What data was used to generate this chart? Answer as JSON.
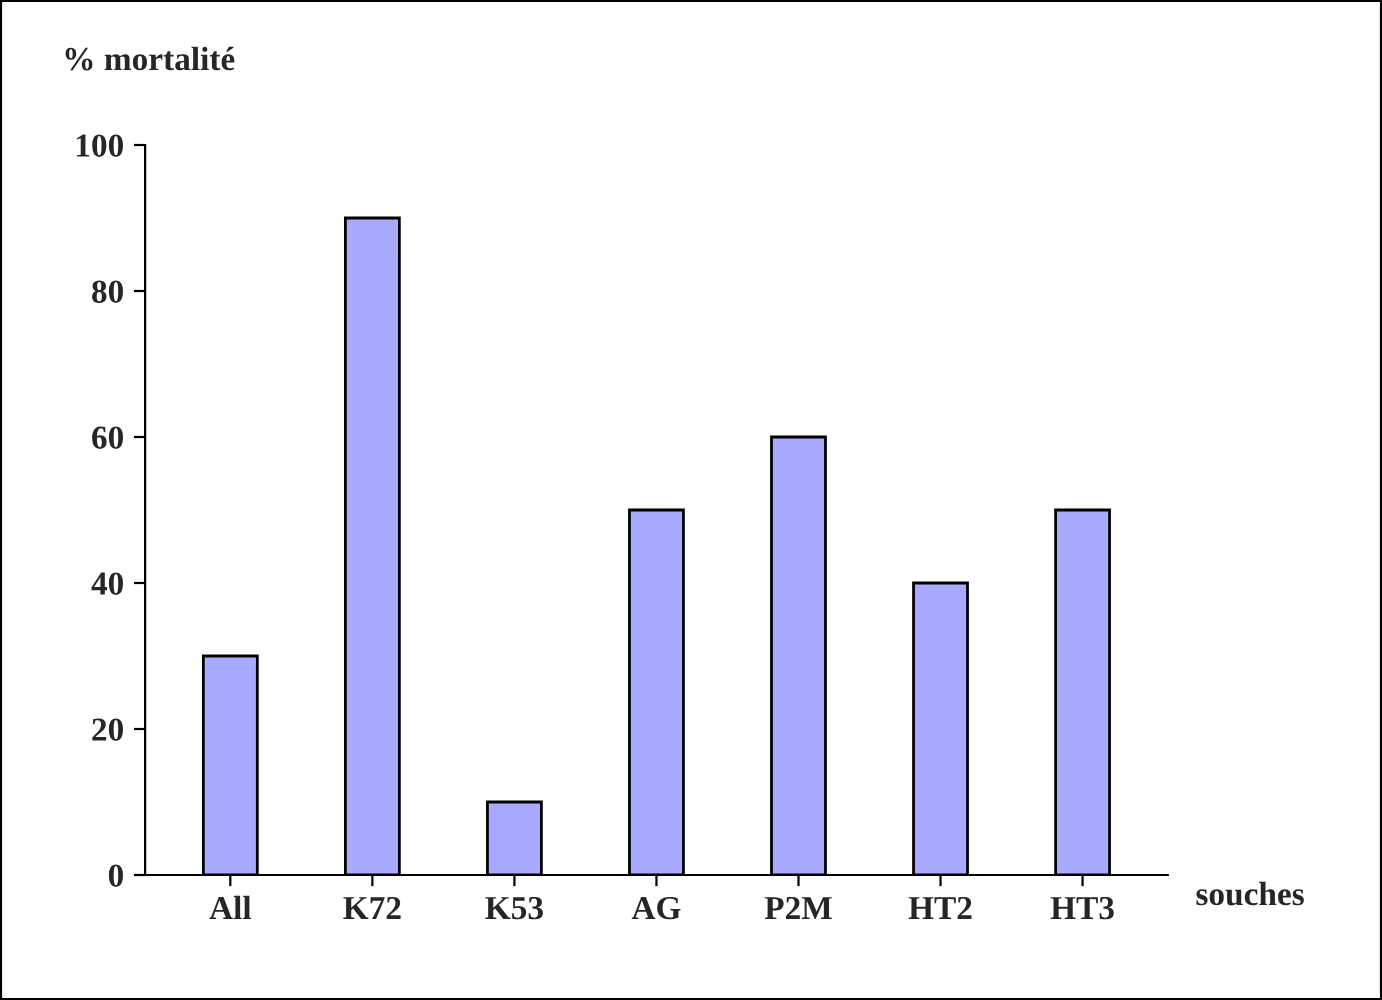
{
  "chart_data": {
    "type": "bar",
    "ylabel": "% mortalité",
    "xlabel": "souches",
    "categories": [
      "All",
      "K72",
      "K53",
      "AG",
      "P2M",
      "HT2",
      "HT3"
    ],
    "values": [
      30,
      90,
      10,
      50,
      60,
      40,
      50
    ],
    "color": "#a9a9ff",
    "ylim": [
      0,
      100
    ],
    "yticks": [
      0,
      20,
      40,
      60,
      80,
      100
    ],
    "grid": false
  }
}
